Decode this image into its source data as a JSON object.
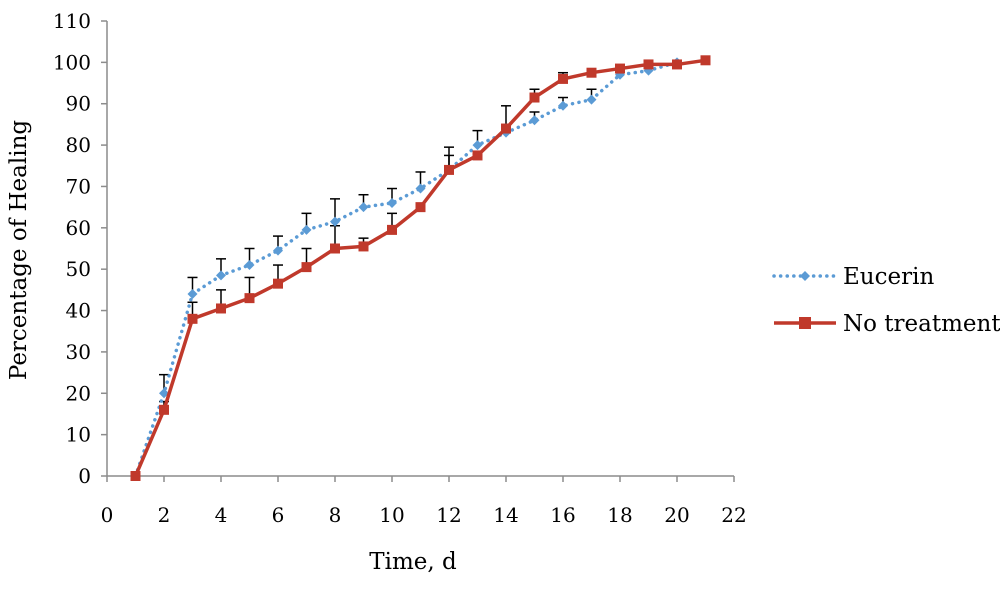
{
  "chart_data": {
    "type": "line",
    "title": "",
    "xlabel": "Time, d",
    "ylabel": "Percentage of Healing",
    "xlim": [
      0,
      22
    ],
    "ylim": [
      0,
      110
    ],
    "x_ticks": [
      0,
      2,
      4,
      6,
      8,
      10,
      12,
      14,
      16,
      18,
      20,
      22
    ],
    "y_ticks": [
      0,
      10,
      20,
      30,
      40,
      50,
      60,
      70,
      80,
      90,
      100,
      110
    ],
    "grid": false,
    "legend_position": "right",
    "series": [
      {
        "name": "Eucerin",
        "color": "#5b9bd5",
        "line_style": "dotted",
        "marker": "diamond",
        "x": [
          1,
          2,
          3,
          4,
          5,
          6,
          7,
          8,
          9,
          10,
          11,
          12,
          13,
          14,
          15,
          16,
          17,
          18,
          19,
          20
        ],
        "y": [
          0,
          20,
          44,
          48.5,
          51,
          54.5,
          59.5,
          61.5,
          65,
          66,
          69.5,
          74,
          80,
          83,
          86,
          89.5,
          91,
          97,
          98,
          100
        ],
        "error_plus": [
          0,
          4.5,
          4,
          4,
          4,
          3.5,
          4,
          5.5,
          3,
          3.5,
          4,
          3.5,
          3.5,
          0,
          2,
          2,
          2.5,
          0,
          0,
          0
        ]
      },
      {
        "name": "No treatment",
        "color": "#c0392b",
        "line_style": "solid",
        "marker": "square",
        "x": [
          1,
          2,
          3,
          4,
          5,
          6,
          7,
          8,
          9,
          10,
          11,
          12,
          13,
          14,
          15,
          16,
          17,
          18,
          19,
          20,
          21
        ],
        "y": [
          0,
          16,
          38,
          40.5,
          43,
          46.5,
          50.5,
          55,
          55.5,
          59.5,
          65,
          74,
          77.5,
          84,
          91.5,
          96,
          97.5,
          98.5,
          99.5,
          99.5,
          100.5
        ],
        "error_plus": [
          0,
          2,
          4,
          4.5,
          5,
          4.5,
          4.5,
          5.5,
          2,
          4,
          0,
          5.5,
          0,
          5.5,
          2,
          1.5,
          0,
          0,
          0,
          0,
          0
        ]
      }
    ]
  }
}
